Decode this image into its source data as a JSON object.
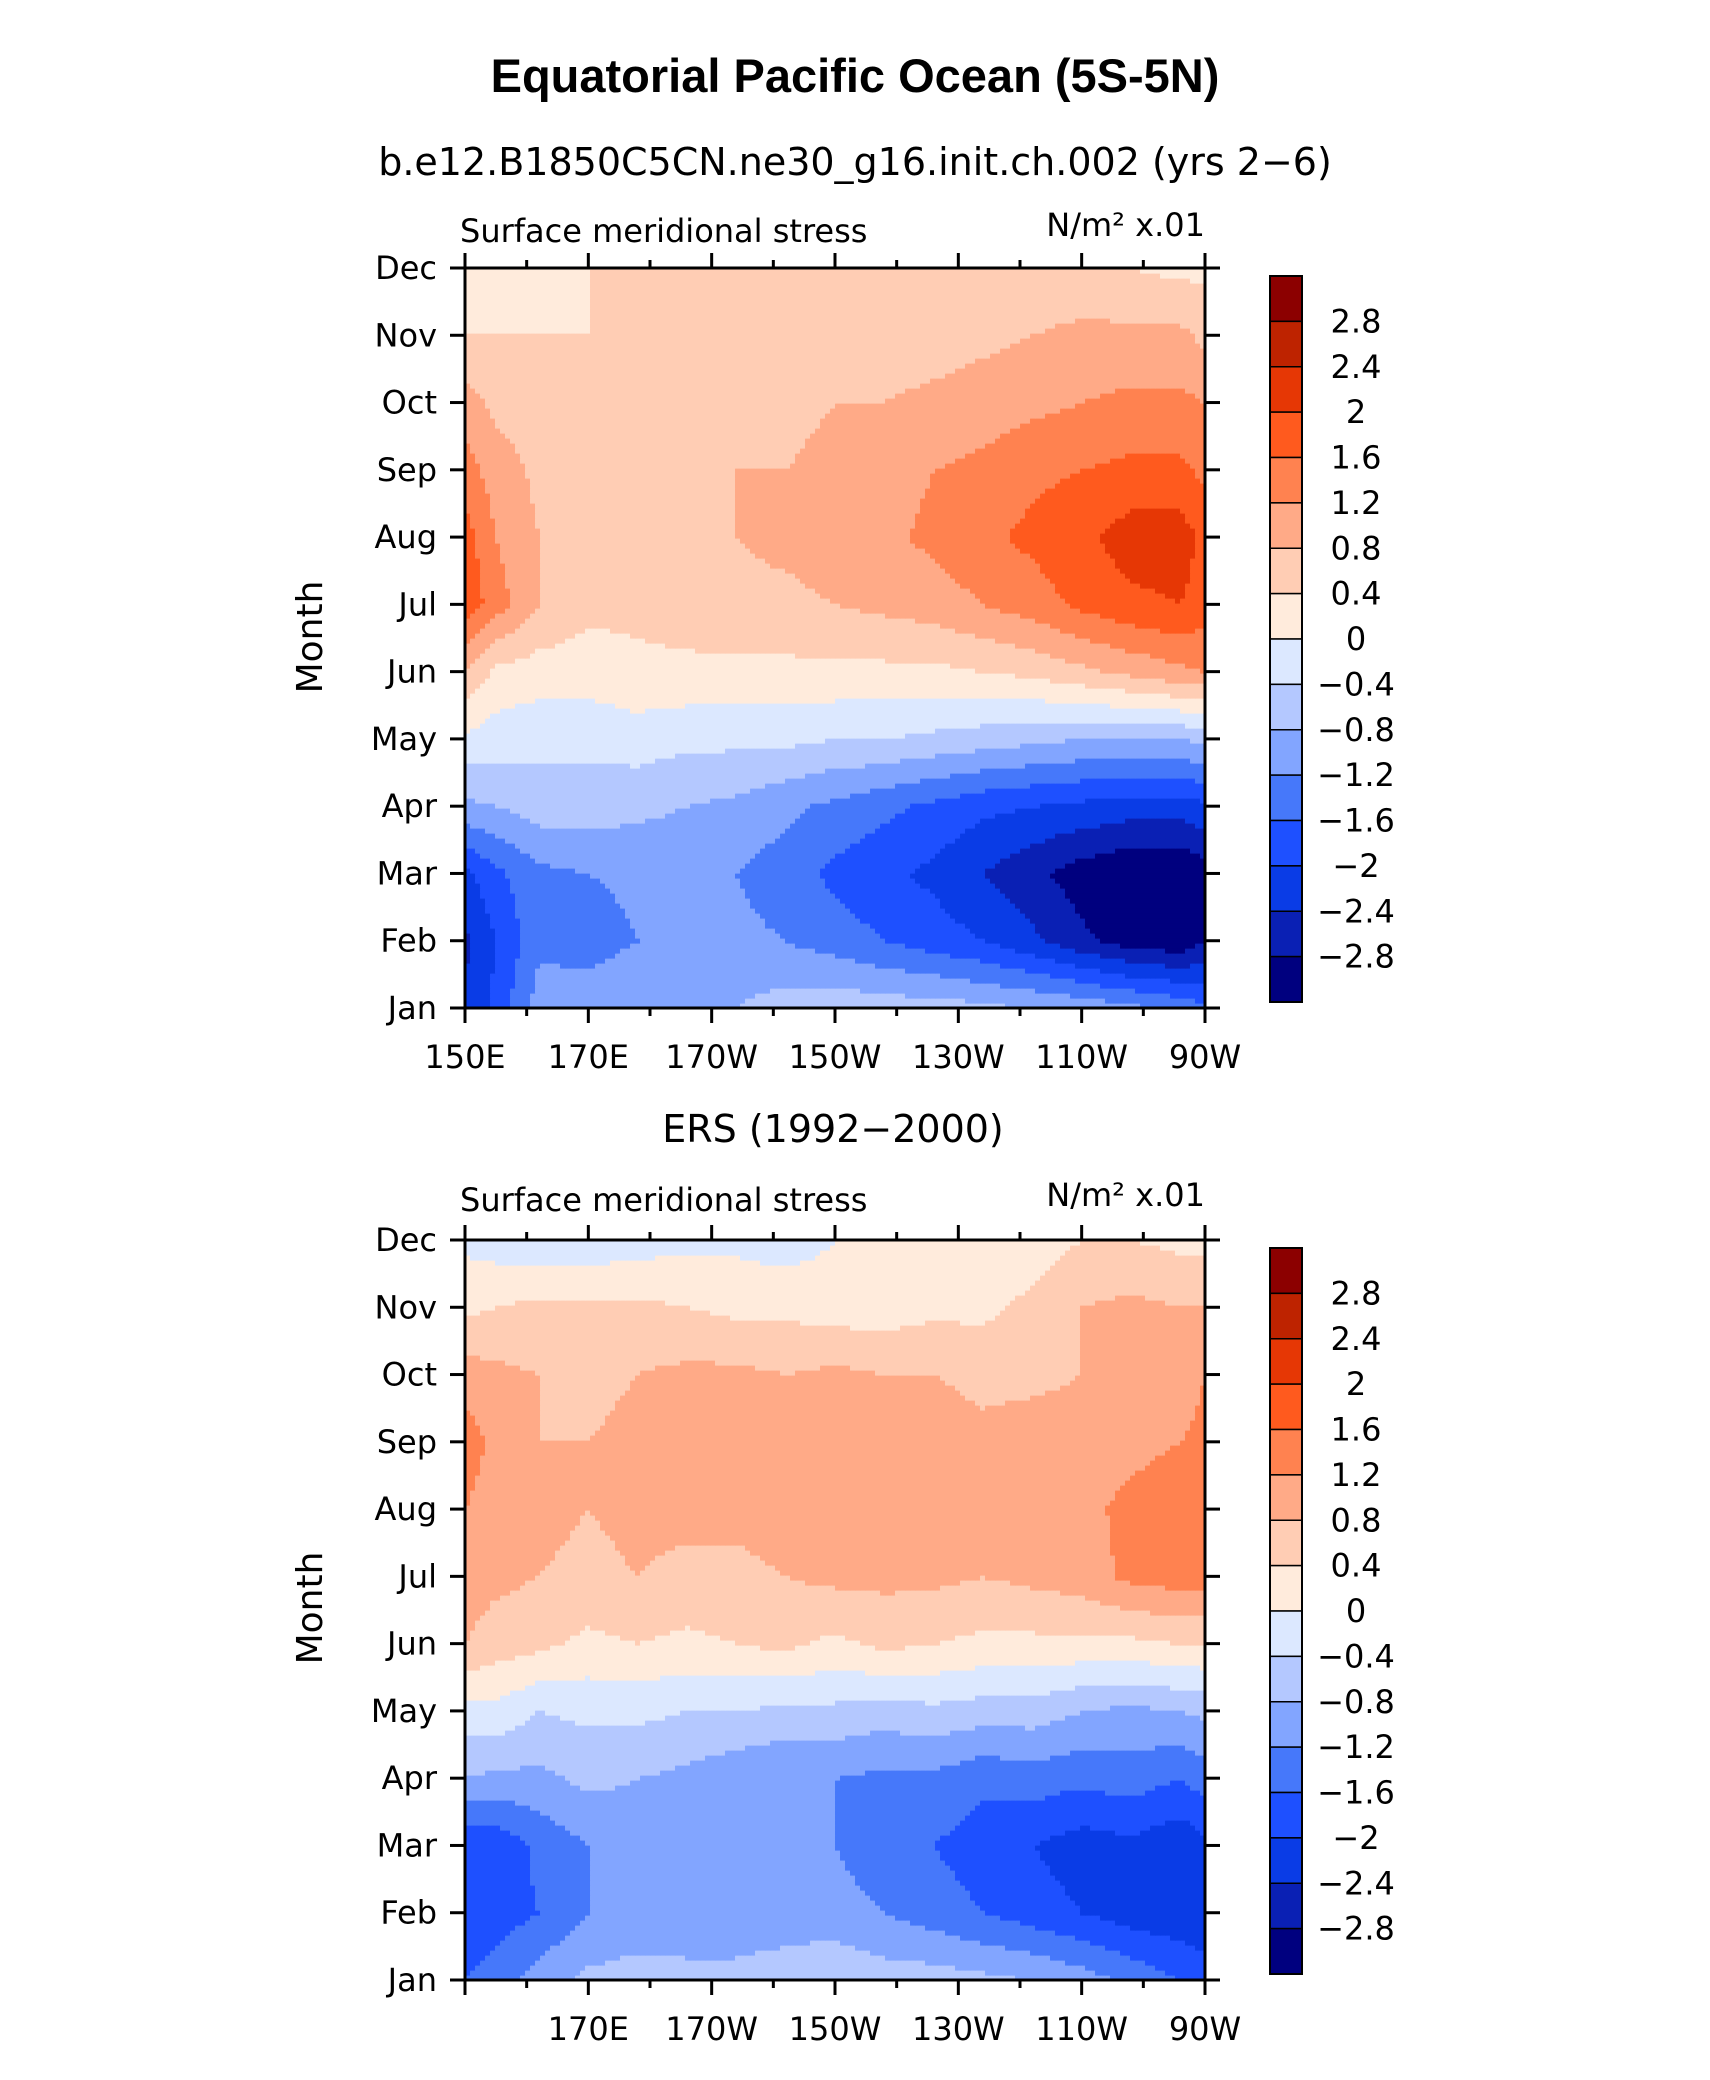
{
  "title": "Equatorial Pacific Ocean (5S-5N)",
  "chart_data": [
    {
      "type": "heatmap",
      "subtitle": "b.e12.B1850C5CN.ne30_g16.init.ch.002 (yrs 2−6)",
      "left_label": "Surface meridional stress",
      "units": "N/m² x.01",
      "ylabel": "Month",
      "xlabel": "",
      "x_ticks": [
        "150E",
        "170E",
        "170W",
        "150W",
        "130W",
        "110W",
        "90W"
      ],
      "y_ticks": [
        "Jan",
        "Feb",
        "Mar",
        "Apr",
        "May",
        "Jun",
        "Jul",
        "Aug",
        "Sep",
        "Oct",
        "Nov",
        "Dec"
      ],
      "x_range": [
        "150E",
        "90W"
      ],
      "x_lon_range": [
        150,
        270
      ],
      "y_range": [
        "Jan",
        "Dec"
      ],
      "x_lon": [
        150,
        155,
        162,
        170,
        178,
        186,
        194,
        202,
        210,
        218,
        226,
        234,
        242,
        250,
        258,
        266,
        270
      ],
      "z": [
        [
          -2.3,
          -1.9,
          -1.0,
          -0.9,
          -0.8,
          -0.8,
          -0.8,
          -0.6,
          -0.5,
          -0.6,
          -0.6,
          -0.7,
          -0.8,
          -0.9,
          -1.1,
          -1.3,
          -1.5
        ],
        [
          -2.5,
          -2.0,
          -1.3,
          -1.4,
          -1.2,
          -1.1,
          -1.1,
          -1.2,
          -1.4,
          -1.6,
          -1.8,
          -2.0,
          -2.3,
          -2.7,
          -3.0,
          -3.1,
          -2.8
        ],
        [
          -2.1,
          -1.7,
          -1.3,
          -1.2,
          -1.1,
          -1.1,
          -1.2,
          -1.4,
          -1.7,
          -1.9,
          -2.1,
          -2.4,
          -2.7,
          -3.0,
          -3.2,
          -3.2,
          -3.0
        ],
        [
          -0.9,
          -0.8,
          -0.6,
          -0.6,
          -0.7,
          -0.8,
          -0.9,
          -1.1,
          -1.3,
          -1.5,
          -1.7,
          -1.9,
          -2.0,
          -2.1,
          -2.2,
          -2.2,
          -2.1
        ],
        [
          -0.1,
          -0.2,
          -0.3,
          -0.3,
          -0.2,
          -0.3,
          -0.3,
          -0.3,
          -0.4,
          -0.4,
          -0.5,
          -0.6,
          -0.7,
          -0.8,
          -0.8,
          -0.8,
          -0.7
        ],
        [
          0.8,
          0.3,
          0.2,
          0.2,
          0.3,
          0.3,
          0.3,
          0.3,
          0.3,
          0.3,
          0.3,
          0.4,
          0.5,
          0.7,
          0.9,
          1.1,
          1.2
        ],
        [
          1.9,
          1.4,
          0.8,
          0.5,
          0.5,
          0.6,
          0.7,
          0.7,
          0.8,
          0.9,
          1.0,
          1.2,
          1.4,
          1.7,
          1.9,
          2.0,
          1.8
        ],
        [
          1.8,
          1.2,
          0.8,
          0.6,
          0.6,
          0.7,
          0.8,
          0.9,
          1.0,
          1.1,
          1.3,
          1.5,
          1.7,
          1.9,
          2.2,
          2.2,
          1.9
        ],
        [
          1.4,
          1.0,
          0.7,
          0.6,
          0.6,
          0.7,
          0.8,
          0.8,
          0.9,
          1.0,
          1.2,
          1.3,
          1.5,
          1.6,
          1.7,
          1.7,
          1.5
        ],
        [
          1.0,
          0.7,
          0.6,
          0.6,
          0.6,
          0.6,
          0.7,
          0.7,
          0.8,
          0.8,
          0.9,
          1.0,
          1.1,
          1.2,
          1.3,
          1.3,
          1.2
        ],
        [
          0.4,
          0.4,
          0.4,
          0.4,
          0.4,
          0.5,
          0.5,
          0.5,
          0.6,
          0.6,
          0.6,
          0.7,
          0.8,
          0.9,
          0.9,
          0.9,
          0.7
        ],
        [
          0.1,
          0.2,
          0.3,
          0.4,
          0.4,
          0.5,
          0.5,
          0.5,
          0.5,
          0.5,
          0.5,
          0.5,
          0.5,
          0.5,
          0.4,
          0.3,
          0.3
        ]
      ]
    },
    {
      "type": "heatmap",
      "subtitle": "ERS (1992−2000)",
      "left_label": "Surface meridional stress",
      "units": "N/m² x.01",
      "ylabel": "Month",
      "xlabel": "",
      "x_ticks": [
        "",
        "170E",
        "170W",
        "150W",
        "130W",
        "110W",
        "90W"
      ],
      "y_ticks": [
        "Jan",
        "Feb",
        "Mar",
        "Apr",
        "May",
        "Jun",
        "Jul",
        "Aug",
        "Sep",
        "Oct",
        "Nov",
        "Dec"
      ],
      "x_range": [
        "150E",
        "90W"
      ],
      "x_lon_range": [
        150,
        270
      ],
      "y_range": [
        "Jan",
        "Dec"
      ],
      "x_lon": [
        150,
        155,
        162,
        170,
        178,
        186,
        194,
        202,
        210,
        218,
        226,
        234,
        242,
        250,
        258,
        266,
        270
      ],
      "z": [
        [
          -1.6,
          -1.4,
          -1.0,
          -0.7,
          -0.6,
          -0.7,
          -0.7,
          -0.6,
          -0.5,
          -0.6,
          -0.6,
          -0.7,
          -0.8,
          -1.0,
          -1.3,
          -1.6,
          -1.8
        ],
        [
          -2.0,
          -1.8,
          -1.6,
          -1.2,
          -1.1,
          -1.0,
          -1.0,
          -1.0,
          -1.0,
          -1.2,
          -1.4,
          -1.6,
          -1.8,
          -2.0,
          -2.2,
          -2.3,
          -2.3
        ],
        [
          -1.9,
          -1.9,
          -1.5,
          -1.2,
          -1.0,
          -1.1,
          -1.2,
          -1.1,
          -1.2,
          -1.5,
          -1.6,
          -1.8,
          -2.0,
          -2.2,
          -2.1,
          -2.3,
          -2.1
        ],
        [
          -0.8,
          -0.9,
          -0.9,
          -0.7,
          -0.8,
          -0.9,
          -1.1,
          -1.2,
          -1.2,
          -1.3,
          -1.3,
          -1.5,
          -1.4,
          -1.5,
          -1.4,
          -1.6,
          -1.4
        ],
        [
          -0.2,
          -0.1,
          -0.4,
          -0.3,
          -0.3,
          -0.4,
          -0.4,
          -0.5,
          -0.5,
          -0.6,
          -0.5,
          -0.6,
          -0.6,
          -0.8,
          -0.9,
          -0.8,
          -0.7
        ],
        [
          0.8,
          0.6,
          0.5,
          0.3,
          0.4,
          0.3,
          0.4,
          0.5,
          0.3,
          0.5,
          0.4,
          0.3,
          0.3,
          0.3,
          0.3,
          0.4,
          0.4
        ],
        [
          1.0,
          0.9,
          0.8,
          0.7,
          0.8,
          0.7,
          0.7,
          0.8,
          0.9,
          0.9,
          0.9,
          0.8,
          0.9,
          1.0,
          1.3,
          1.4,
          1.4
        ],
        [
          1.2,
          1.0,
          0.9,
          0.8,
          0.9,
          0.9,
          0.9,
          1.0,
          1.0,
          1.0,
          0.9,
          0.9,
          1.0,
          1.1,
          1.3,
          1.4,
          1.4
        ],
        [
          1.4,
          1.1,
          0.8,
          0.8,
          0.9,
          0.9,
          1.0,
          1.0,
          1.0,
          1.0,
          1.0,
          0.9,
          1.0,
          1.0,
          1.1,
          1.2,
          1.3
        ],
        [
          1.0,
          0.9,
          0.8,
          0.7,
          0.8,
          0.9,
          0.9,
          0.8,
          0.9,
          0.8,
          0.8,
          0.7,
          0.7,
          0.8,
          0.9,
          1.0,
          1.2
        ],
        [
          0.3,
          0.4,
          0.5,
          0.5,
          0.5,
          0.4,
          0.3,
          0.3,
          0.2,
          0.2,
          0.3,
          0.3,
          0.5,
          0.8,
          0.9,
          0.8,
          0.8
        ],
        [
          -0.1,
          -0.2,
          -0.3,
          -0.3,
          -0.2,
          -0.1,
          -0.1,
          -0.2,
          0.0,
          0.2,
          0.2,
          0.1,
          0.2,
          0.4,
          0.4,
          0.3,
          0.3
        ]
      ]
    }
  ],
  "colorbar": {
    "labels": [
      "2.8",
      "2.4",
      "2",
      "1.6",
      "1.2",
      "0.8",
      "0.4",
      "0",
      "−0.4",
      "−0.8",
      "−1.2",
      "−1.6",
      "−2",
      "−2.4",
      "−2.8"
    ],
    "levels": [
      -2.8,
      -2.4,
      -2.0,
      -1.6,
      -1.2,
      -0.8,
      -0.4,
      0.0,
      0.4,
      0.8,
      1.2,
      1.6,
      2.0,
      2.4,
      2.8
    ],
    "colors": [
      "#00007F",
      "#0A20B4",
      "#0A3CE6",
      "#1E50FF",
      "#4678FA",
      "#82A5FF",
      "#B4C8FF",
      "#DCE8FF",
      "#FFEBDC",
      "#FFCDB4",
      "#FFAA87",
      "#FF8250",
      "#FF5A1E",
      "#E63705",
      "#BE2300",
      "#8C0000"
    ]
  }
}
